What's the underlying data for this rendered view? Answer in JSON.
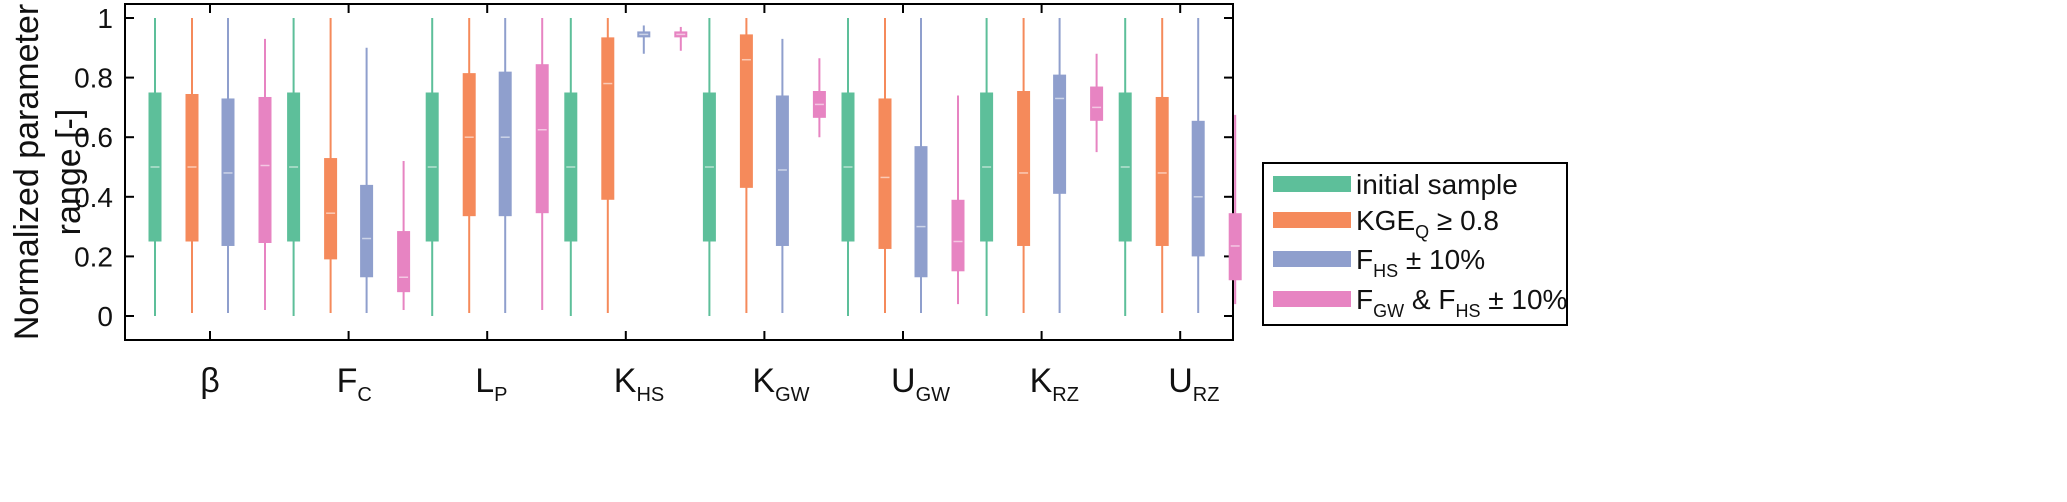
{
  "chart_data": {
    "type": "boxplot",
    "ylabel_lines": [
      "Normalized parameter",
      "range [-]"
    ],
    "ylim": [
      0,
      1
    ],
    "yticks": [
      "0",
      "0.2",
      "0.4",
      "0.6",
      "0.8",
      "1"
    ],
    "ytick_values": [
      0,
      0.2,
      0.4,
      0.6,
      0.8,
      1
    ],
    "grid": false,
    "legend_position": "right",
    "categories": [
      {
        "main": "β",
        "sub": ""
      },
      {
        "main": "F",
        "sub": "C"
      },
      {
        "main": "L",
        "sub": "P"
      },
      {
        "main": "K",
        "sub": "HS"
      },
      {
        "main": "K",
        "sub": "GW"
      },
      {
        "main": "U",
        "sub": "GW"
      },
      {
        "main": "K",
        "sub": "RZ"
      },
      {
        "main": "U",
        "sub": "RZ"
      }
    ],
    "series": [
      {
        "legend_parts": [
          {
            "t": "initial sample"
          }
        ],
        "color": "#5dbf9a",
        "boxes": [
          {
            "min": 0,
            "q1": 0.25,
            "median": 0.5,
            "q3": 0.75,
            "max": 1
          },
          {
            "min": 0,
            "q1": 0.25,
            "median": 0.5,
            "q3": 0.75,
            "max": 1
          },
          {
            "min": 0,
            "q1": 0.25,
            "median": 0.5,
            "q3": 0.75,
            "max": 1
          },
          {
            "min": 0,
            "q1": 0.25,
            "median": 0.5,
            "q3": 0.75,
            "max": 1
          },
          {
            "min": 0,
            "q1": 0.25,
            "median": 0.5,
            "q3": 0.75,
            "max": 1
          },
          {
            "min": 0,
            "q1": 0.25,
            "median": 0.5,
            "q3": 0.75,
            "max": 1
          },
          {
            "min": 0,
            "q1": 0.25,
            "median": 0.5,
            "q3": 0.75,
            "max": 1
          },
          {
            "min": 0,
            "q1": 0.25,
            "median": 0.5,
            "q3": 0.75,
            "max": 1
          }
        ]
      },
      {
        "legend_parts": [
          {
            "t": "KGE"
          },
          {
            "t": "Q",
            "sub": true
          },
          {
            "t": " ≥ 0.8"
          }
        ],
        "color": "#f58a5b",
        "boxes": [
          {
            "min": 0.01,
            "q1": 0.25,
            "median": 0.5,
            "q3": 0.745,
            "max": 1
          },
          {
            "min": 0.01,
            "q1": 0.19,
            "median": 0.345,
            "q3": 0.53,
            "max": 1
          },
          {
            "min": 0.01,
            "q1": 0.335,
            "median": 0.6,
            "q3": 0.815,
            "max": 1
          },
          {
            "min": 0.01,
            "q1": 0.39,
            "median": 0.78,
            "q3": 0.935,
            "max": 1
          },
          {
            "min": 0.01,
            "q1": 0.43,
            "median": 0.86,
            "q3": 0.945,
            "max": 1
          },
          {
            "min": 0.01,
            "q1": 0.225,
            "median": 0.465,
            "q3": 0.73,
            "max": 1
          },
          {
            "min": 0.01,
            "q1": 0.235,
            "median": 0.48,
            "q3": 0.755,
            "max": 1
          },
          {
            "min": 0.01,
            "q1": 0.235,
            "median": 0.48,
            "q3": 0.735,
            "max": 1
          }
        ]
      },
      {
        "legend_parts": [
          {
            "t": "F"
          },
          {
            "t": "HS",
            "sub": true
          },
          {
            "t": " ± 10%"
          }
        ],
        "color": "#8f9fcd",
        "boxes": [
          {
            "min": 0.01,
            "q1": 0.235,
            "median": 0.48,
            "q3": 0.73,
            "max": 1
          },
          {
            "min": 0.01,
            "q1": 0.13,
            "median": 0.26,
            "q3": 0.44,
            "max": 0.9
          },
          {
            "min": 0.01,
            "q1": 0.335,
            "median": 0.6,
            "q3": 0.82,
            "max": 1
          },
          {
            "min": 0.88,
            "q1": 0.935,
            "median": 0.945,
            "q3": 0.955,
            "max": 0.975
          },
          {
            "min": 0.01,
            "q1": 0.235,
            "median": 0.49,
            "q3": 0.74,
            "max": 0.93
          },
          {
            "min": 0.01,
            "q1": 0.13,
            "median": 0.3,
            "q3": 0.57,
            "max": 1
          },
          {
            "min": 0.01,
            "q1": 0.41,
            "median": 0.73,
            "q3": 0.81,
            "max": 1
          },
          {
            "min": 0.01,
            "q1": 0.2,
            "median": 0.4,
            "q3": 0.655,
            "max": 1
          }
        ]
      },
      {
        "legend_parts": [
          {
            "t": "F"
          },
          {
            "t": "GW",
            "sub": true
          },
          {
            "t": " & F"
          },
          {
            "t": "HS",
            "sub": true
          },
          {
            "t": " ± 10%"
          }
        ],
        "color": "#e784c2",
        "boxes": [
          {
            "min": 0.02,
            "q1": 0.245,
            "median": 0.505,
            "q3": 0.735,
            "max": 0.93
          },
          {
            "min": 0.02,
            "q1": 0.08,
            "median": 0.13,
            "q3": 0.285,
            "max": 0.52
          },
          {
            "min": 0.02,
            "q1": 0.345,
            "median": 0.625,
            "q3": 0.845,
            "max": 1
          },
          {
            "min": 0.89,
            "q1": 0.935,
            "median": 0.945,
            "q3": 0.955,
            "max": 0.97
          },
          {
            "min": 0.6,
            "q1": 0.665,
            "median": 0.71,
            "q3": 0.755,
            "max": 0.865
          },
          {
            "min": 0.04,
            "q1": 0.15,
            "median": 0.25,
            "q3": 0.39,
            "max": 0.74
          },
          {
            "min": 0.55,
            "q1": 0.655,
            "median": 0.7,
            "q3": 0.77,
            "max": 0.88
          },
          {
            "min": 0.04,
            "q1": 0.12,
            "median": 0.235,
            "q3": 0.345,
            "max": 0.675
          }
        ]
      }
    ]
  }
}
